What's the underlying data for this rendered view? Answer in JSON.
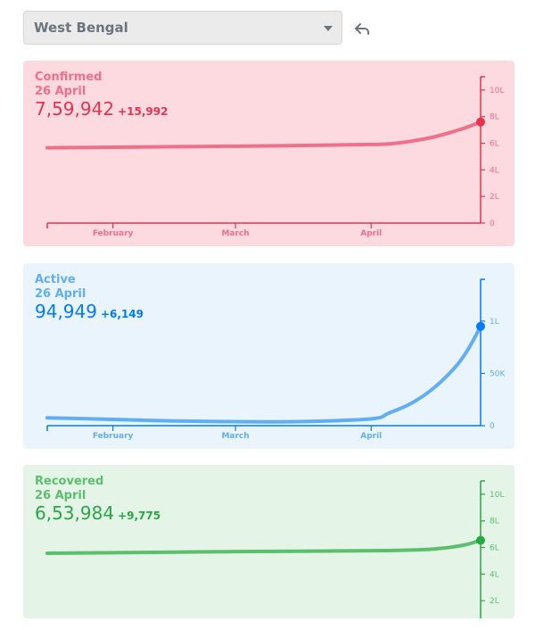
{
  "region_select": {
    "value": "West Bengal",
    "icon": "chevron-down-icon"
  },
  "undo": {
    "icon": "undo-icon"
  },
  "charts": [
    {
      "key": "confirmed",
      "title": "Confirmed",
      "date": "26 April",
      "value": "7,59,942",
      "delta": "+15,992",
      "colors": {
        "bg": "#fdd9e0",
        "main": "#e8334f",
        "light": "#f0708a"
      },
      "chart_data": {
        "type": "line",
        "x_ticks": [
          "February",
          "March",
          "April"
        ],
        "y_ticks": [
          "0",
          "2L",
          "4L",
          "6L",
          "8L",
          "10L"
        ],
        "y_tick_values": [
          0,
          200000,
          400000,
          600000,
          800000,
          1000000
        ],
        "ylim": [
          0,
          1100000
        ],
        "series": [
          {
            "x": [
              "2021-01-17",
              "2021-02-01",
              "2021-02-15",
              "2021-03-01",
              "2021-03-15",
              "2021-04-01",
              "2021-04-05",
              "2021-04-10",
              "2021-04-15",
              "2021-04-20",
              "2021-04-23",
              "2021-04-26"
            ],
            "values": [
              566000,
              570000,
              574000,
              578000,
              583000,
              591000,
              595000,
              615000,
              645000,
              690000,
              722000,
              759942
            ]
          }
        ]
      }
    },
    {
      "key": "active",
      "title": "Active",
      "date": "26 April",
      "value": "94,949",
      "delta": "+6,149",
      "colors": {
        "bg": "#eaf4fd",
        "main": "#007bff",
        "light": "#62aef5"
      },
      "chart_data": {
        "type": "line",
        "x_ticks": [
          "February",
          "March",
          "April"
        ],
        "y_ticks": [
          "0",
          "50K",
          "1L"
        ],
        "y_tick_values": [
          0,
          50000,
          100000
        ],
        "ylim": [
          0,
          140000
        ],
        "series": [
          {
            "x": [
              "2021-01-17",
              "2021-02-01",
              "2021-02-15",
              "2021-03-01",
              "2021-03-15",
              "2021-04-01",
              "2021-04-05",
              "2021-04-10",
              "2021-04-15",
              "2021-04-20",
              "2021-04-23",
              "2021-04-26"
            ],
            "values": [
              7500,
              6000,
              4500,
              3800,
              3800,
              6500,
              12000,
              21000,
              35000,
              55000,
              72000,
              94949
            ]
          }
        ]
      }
    },
    {
      "key": "recovered",
      "title": "Recovered",
      "date": "26 April",
      "value": "6,53,984",
      "delta": "+9,775",
      "colors": {
        "bg": "#e4f4e7",
        "main": "#28a745",
        "light": "#5cbf6d"
      },
      "chart_data": {
        "type": "line",
        "x_ticks": [
          "February",
          "March",
          "April"
        ],
        "y_ticks": [
          "2L",
          "4L",
          "6L",
          "8L",
          "10L"
        ],
        "y_tick_values": [
          200000,
          400000,
          600000,
          800000,
          1000000
        ],
        "ylim": [
          0,
          1100000
        ],
        "series": [
          {
            "x": [
              "2021-01-17",
              "2021-02-01",
              "2021-02-15",
              "2021-03-01",
              "2021-03-15",
              "2021-04-01",
              "2021-04-05",
              "2021-04-10",
              "2021-04-15",
              "2021-04-20",
              "2021-04-23",
              "2021-04-26"
            ],
            "values": [
              557000,
              561000,
              565000,
              569000,
              572000,
              576000,
              577000,
              581000,
              588000,
              606000,
              624000,
              653984
            ]
          }
        ]
      }
    }
  ]
}
